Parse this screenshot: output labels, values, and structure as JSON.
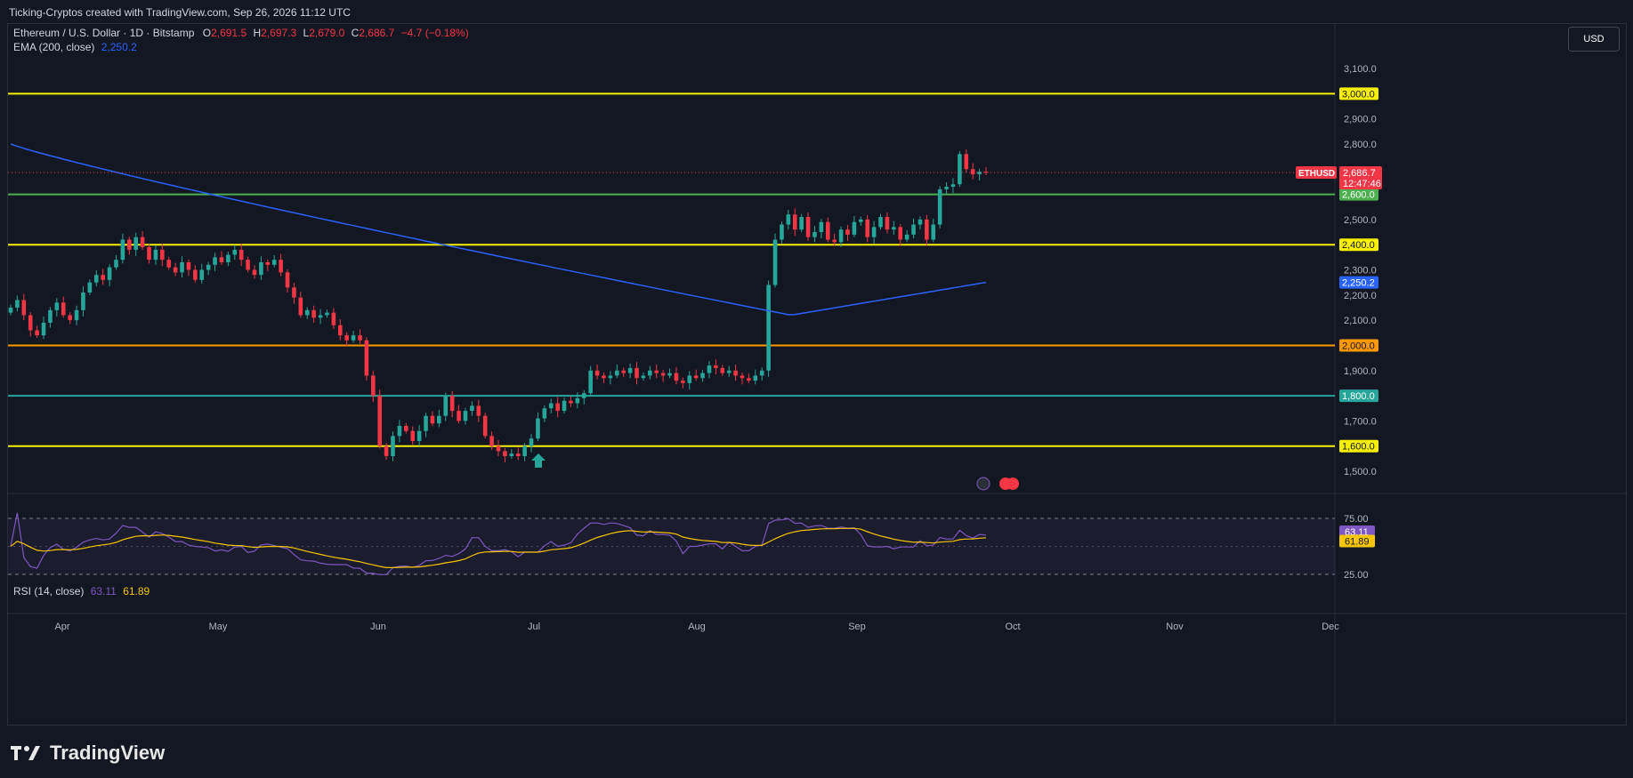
{
  "header": {
    "caption": "Ticking-Cryptos created with TradingView.com, Sep 26, 2026 11:12 UTC"
  },
  "legend": {
    "symbol_line": "Ethereum / U.S. Dollar · 1D · Bitstamp",
    "o_label": "O",
    "o_value": "2,691.5",
    "h_label": "H",
    "h_value": "2,697.3",
    "l_label": "L",
    "l_value": "2,679.0",
    "c_label": "C",
    "c_value": "2,686.7",
    "change": "−4.7 (−0.18%)",
    "ema_label": "EMA (200, close)",
    "ema_value": "2,250.2",
    "rsi_label": "RSI (14, close)",
    "rsi_value": "63.11",
    "rsi_ma_value": "61.89"
  },
  "currency_button": "USD",
  "price_tag": {
    "symbol": "ETHUSD",
    "price": "2,686.7",
    "countdown": "12:47:46"
  },
  "brand": "TradingView",
  "colors": {
    "up": "#26a69a",
    "down": "#f23645",
    "ema": "#2962ff",
    "rsi": "#7e57c2",
    "rsi_ma": "#f7c600",
    "bg": "#131722"
  },
  "chart_data": {
    "type": "candlestick",
    "x_ticks": [
      "Apr",
      "May",
      "Jun",
      "Jul",
      "Aug",
      "Sep",
      "Oct",
      "Nov",
      "Dec"
    ],
    "y_ticks": [
      "1,500.0",
      "1,600.0",
      "1,700.0",
      "1,800.0",
      "1,900.0",
      "2,000.0",
      "2,100.0",
      "2,200.0",
      "2,300.0",
      "2,400.0",
      "2,500.0",
      "2,600.0",
      "2,700.0",
      "2,800.0",
      "2,900.0",
      "3,000.0",
      "3,100.0"
    ],
    "ylim": [
      1450,
      3150
    ],
    "horizontal_levels": [
      {
        "value": 3000,
        "label": "3,000.0",
        "color": "#f7f000"
      },
      {
        "value": 2600,
        "label": "2,600.0",
        "color": "#4caf50"
      },
      {
        "value": 2400,
        "label": "2,400.0",
        "color": "#f7f000"
      },
      {
        "value": 2000,
        "label": "2,000.0",
        "color": "#ff9800"
      },
      {
        "value": 1800,
        "label": "1,800.0",
        "color": "#26a69a"
      },
      {
        "value": 1600,
        "label": "1,600.0",
        "color": "#f7f000"
      }
    ],
    "ema_label": "2,250.2",
    "close_series": [
      2150,
      2180,
      2120,
      2060,
      2040,
      2090,
      2140,
      2170,
      2120,
      2100,
      2140,
      2210,
      2250,
      2280,
      2260,
      2310,
      2340,
      2420,
      2380,
      2430,
      2390,
      2340,
      2380,
      2340,
      2310,
      2290,
      2330,
      2300,
      2260,
      2300,
      2320,
      2350,
      2330,
      2360,
      2380,
      2340,
      2300,
      2280,
      2330,
      2320,
      2340,
      2290,
      2230,
      2190,
      2120,
      2140,
      2110,
      2120,
      2130,
      2080,
      2040,
      2020,
      2040,
      2020,
      1880,
      1800,
      1600,
      1560,
      1640,
      1680,
      1660,
      1620,
      1660,
      1720,
      1690,
      1720,
      1800,
      1740,
      1700,
      1740,
      1760,
      1720,
      1640,
      1600,
      1580,
      1560,
      1570,
      1560,
      1600,
      1630,
      1710,
      1750,
      1770,
      1740,
      1780,
      1770,
      1790,
      1810,
      1900,
      1880,
      1870,
      1880,
      1900,
      1890,
      1910,
      1870,
      1880,
      1900,
      1890,
      1880,
      1890,
      1860,
      1850,
      1880,
      1870,
      1890,
      1920,
      1910,
      1890,
      1900,
      1880,
      1870,
      1860,
      1880,
      1900,
      2240,
      2420,
      2480,
      2520,
      2460,
      2510,
      2430,
      2450,
      2490,
      2420,
      2410,
      2460,
      2440,
      2490,
      2500,
      2430,
      2470,
      2510,
      2460,
      2470,
      2420,
      2440,
      2480,
      2500,
      2420,
      2480,
      2620,
      2630,
      2640,
      2760,
      2700,
      2680,
      2690,
      2686.7
    ],
    "ema_series_start": 2800,
    "ema_series_end": 2250.2,
    "rsi_ticks": [
      "75.00",
      "25.00"
    ],
    "rsi_last": 63.11,
    "rsi_ma_last": 61.89
  }
}
